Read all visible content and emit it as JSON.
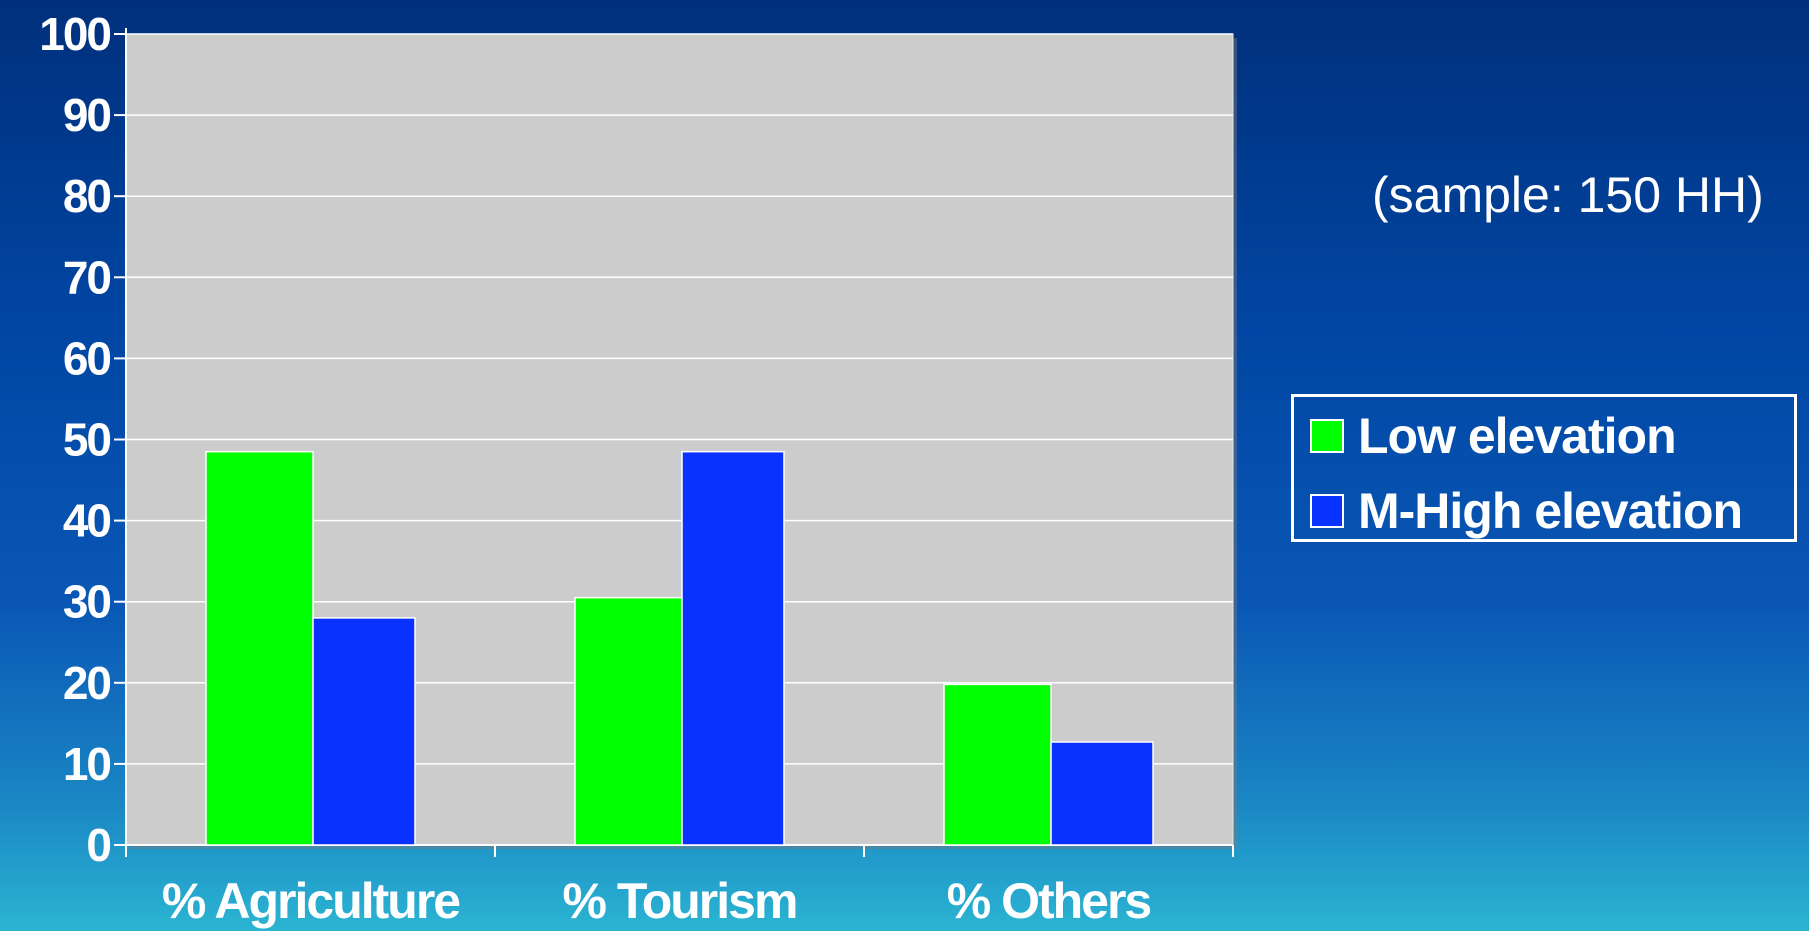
{
  "chart_data": {
    "type": "bar",
    "categories": [
      "% Agriculture",
      "% Tourism",
      "% Others"
    ],
    "series": [
      {
        "name": "Low elevation",
        "values": [
          48.5,
          30.5,
          19.8
        ],
        "color": "#00ff00"
      },
      {
        "name": "M-High elevation",
        "values": [
          28,
          48.5,
          12.7
        ],
        "color": "#0a32ff"
      }
    ],
    "ylim": [
      0,
      100
    ],
    "yticks": [
      "0",
      "10",
      "20",
      "30",
      "40",
      "50",
      "60",
      "70",
      "80",
      "90",
      "100"
    ],
    "grid": true,
    "plot_background": "#cccccc",
    "legend_position": "right"
  },
  "note": "(sample: 150 HH)"
}
